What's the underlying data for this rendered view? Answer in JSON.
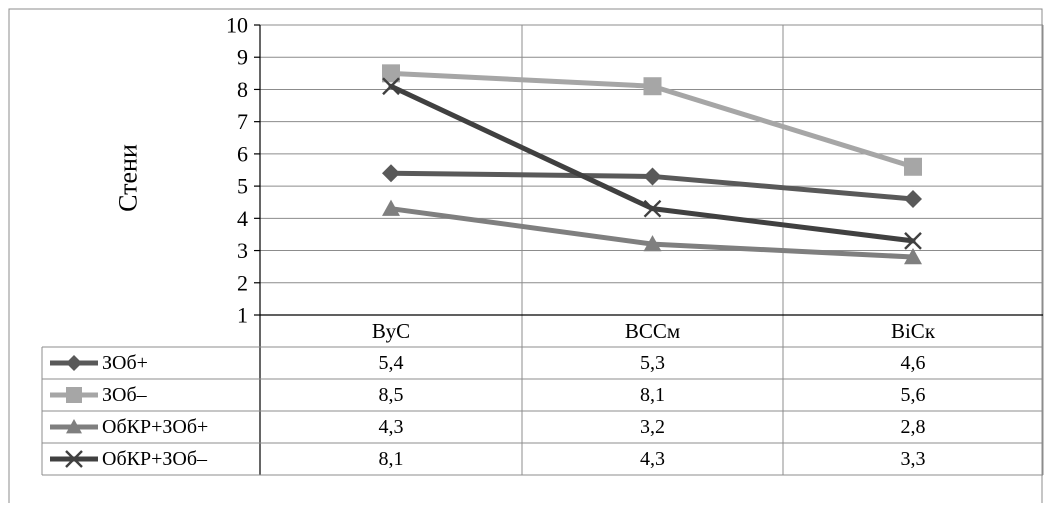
{
  "chart_data": {
    "type": "line",
    "title": "",
    "xlabel": "",
    "ylabel": "Стени",
    "ylim": [
      1,
      10
    ],
    "yticks": [
      "1",
      "2",
      "3",
      "4",
      "5",
      "6",
      "7",
      "8",
      "9",
      "10"
    ],
    "categories": [
      "ВуС",
      "ВССм",
      "ВіСк"
    ],
    "grid": "both",
    "legend": "data-table-bottom",
    "series": [
      {
        "name": "ЗОб+",
        "values": [
          5.4,
          5.3,
          4.6
        ],
        "labels": [
          "5,4",
          "5,3",
          "4,6"
        ],
        "color": "#595959",
        "marker": "diamond-icon"
      },
      {
        "name": "ЗОб–",
        "values": [
          8.5,
          8.1,
          5.6
        ],
        "labels": [
          "8,5",
          "8,1",
          "5,6"
        ],
        "color": "#a6a6a6",
        "marker": "square-icon"
      },
      {
        "name": "ОбКР+ЗОб+",
        "values": [
          4.3,
          3.2,
          2.8
        ],
        "labels": [
          "4,3",
          "3,2",
          "2,8"
        ],
        "color": "#7f7f7f",
        "marker": "triangle-icon"
      },
      {
        "name": "ОбКР+ЗОб–",
        "values": [
          8.1,
          4.3,
          3.3
        ],
        "labels": [
          "8,1",
          "4,3",
          "3,3"
        ],
        "color": "#404040",
        "marker": "x-icon"
      }
    ]
  }
}
